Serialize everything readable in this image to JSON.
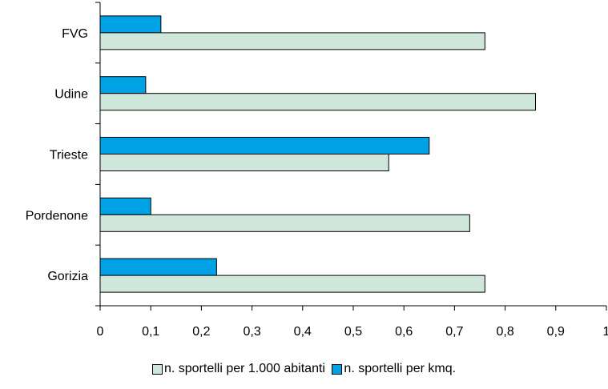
{
  "chart_data": {
    "type": "bar",
    "orientation": "horizontal",
    "categories": [
      "FVG",
      "Udine",
      "Trieste",
      "Pordenone",
      "Gorizia"
    ],
    "series": [
      {
        "name": "n. sportelli per kmq.",
        "color": "#00a2e5",
        "values": [
          0.12,
          0.09,
          0.65,
          0.1,
          0.23
        ]
      },
      {
        "name": "n. sportelli per 1.000 abitanti",
        "color": "#cfe7da",
        "values": [
          0.76,
          0.86,
          0.57,
          0.73,
          0.76
        ]
      }
    ],
    "x_ticks": [
      "0",
      "0,1",
      "0,2",
      "0,3",
      "0,4",
      "0,5",
      "0,6",
      "0,7",
      "0,8",
      "0,9",
      "1"
    ],
    "xlim": [
      0,
      1
    ],
    "grid": false,
    "legend_position": "bottom",
    "legend": [
      {
        "label": "n. sportelli per 1.000 abitanti",
        "color": "#cfe7da"
      },
      {
        "label": "n. sportelli per kmq.",
        "color": "#00a2e5"
      }
    ],
    "title": "",
    "xlabel": "",
    "ylabel": ""
  }
}
